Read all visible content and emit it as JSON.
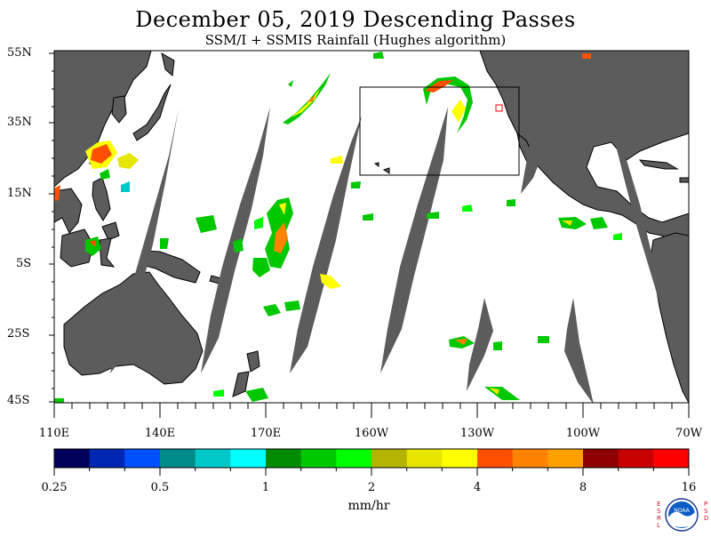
{
  "title": "December 05, 2019  Descending Passes",
  "subtitle": "SSM/I + SSMIS Rainfall (Hughes algorithm)",
  "lat_labels": [
    "55N",
    "35N",
    "15N",
    "5S",
    "25S",
    "45S"
  ],
  "lon_labels": [
    "110E",
    "140E",
    "170E",
    "160W",
    "130W",
    "100W",
    "70W"
  ],
  "colorbar": {
    "ticks": [
      "0.25",
      "0.5",
      "1",
      "2",
      "4",
      "8",
      "16"
    ],
    "colors": [
      "#00005a",
      "#0026b4",
      "#0050ff",
      "#008c8c",
      "#00c8c8",
      "#00ffff",
      "#008c00",
      "#00c800",
      "#00ff00",
      "#b4b400",
      "#e6e600",
      "#ffff00",
      "#ff5000",
      "#ff8200",
      "#ffa000",
      "#8c0000",
      "#c80000",
      "#ff0000"
    ],
    "units": "mm/hr"
  },
  "logo": {
    "name": "NOAA",
    "left_letters": "ESRL",
    "right_letters": "PSD"
  },
  "colors": {
    "land": "#5c5c5c",
    "swath_gap": "#5c5c5c",
    "ocean": "#ffffff"
  }
}
